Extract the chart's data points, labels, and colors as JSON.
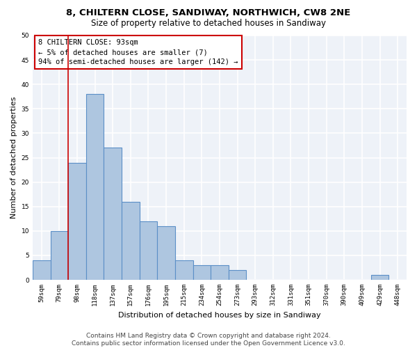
{
  "title1": "8, CHILTERN CLOSE, SANDIWAY, NORTHWICH, CW8 2NE",
  "title2": "Size of property relative to detached houses in Sandiway",
  "xlabel": "Distribution of detached houses by size in Sandiway",
  "ylabel": "Number of detached properties",
  "categories": [
    "59sqm",
    "79sqm",
    "98sqm",
    "118sqm",
    "137sqm",
    "157sqm",
    "176sqm",
    "195sqm",
    "215sqm",
    "234sqm",
    "254sqm",
    "273sqm",
    "293sqm",
    "312sqm",
    "331sqm",
    "351sqm",
    "370sqm",
    "390sqm",
    "409sqm",
    "429sqm",
    "448sqm"
  ],
  "values": [
    4,
    10,
    24,
    38,
    27,
    16,
    12,
    11,
    4,
    3,
    3,
    2,
    0,
    0,
    0,
    0,
    0,
    0,
    0,
    1,
    0
  ],
  "bar_color": "#aec6e0",
  "bar_edge_color": "#5b8fc7",
  "vline_color": "#cc0000",
  "vline_pos": 1.5,
  "annotation_text": "8 CHILTERN CLOSE: 93sqm\n← 5% of detached houses are smaller (7)\n94% of semi-detached houses are larger (142) →",
  "annotation_box_color": "#cc0000",
  "ylim": [
    0,
    50
  ],
  "yticks": [
    0,
    5,
    10,
    15,
    20,
    25,
    30,
    35,
    40,
    45,
    50
  ],
  "footer": "Contains HM Land Registry data © Crown copyright and database right 2024.\nContains public sector information licensed under the Open Government Licence v3.0.",
  "bg_color": "#eef2f8",
  "grid_color": "#ffffff",
  "title1_fontsize": 9.5,
  "title2_fontsize": 8.5,
  "xlabel_fontsize": 8,
  "ylabel_fontsize": 8,
  "tick_fontsize": 6.5,
  "footer_fontsize": 6.5,
  "annotation_fontsize": 7.5
}
